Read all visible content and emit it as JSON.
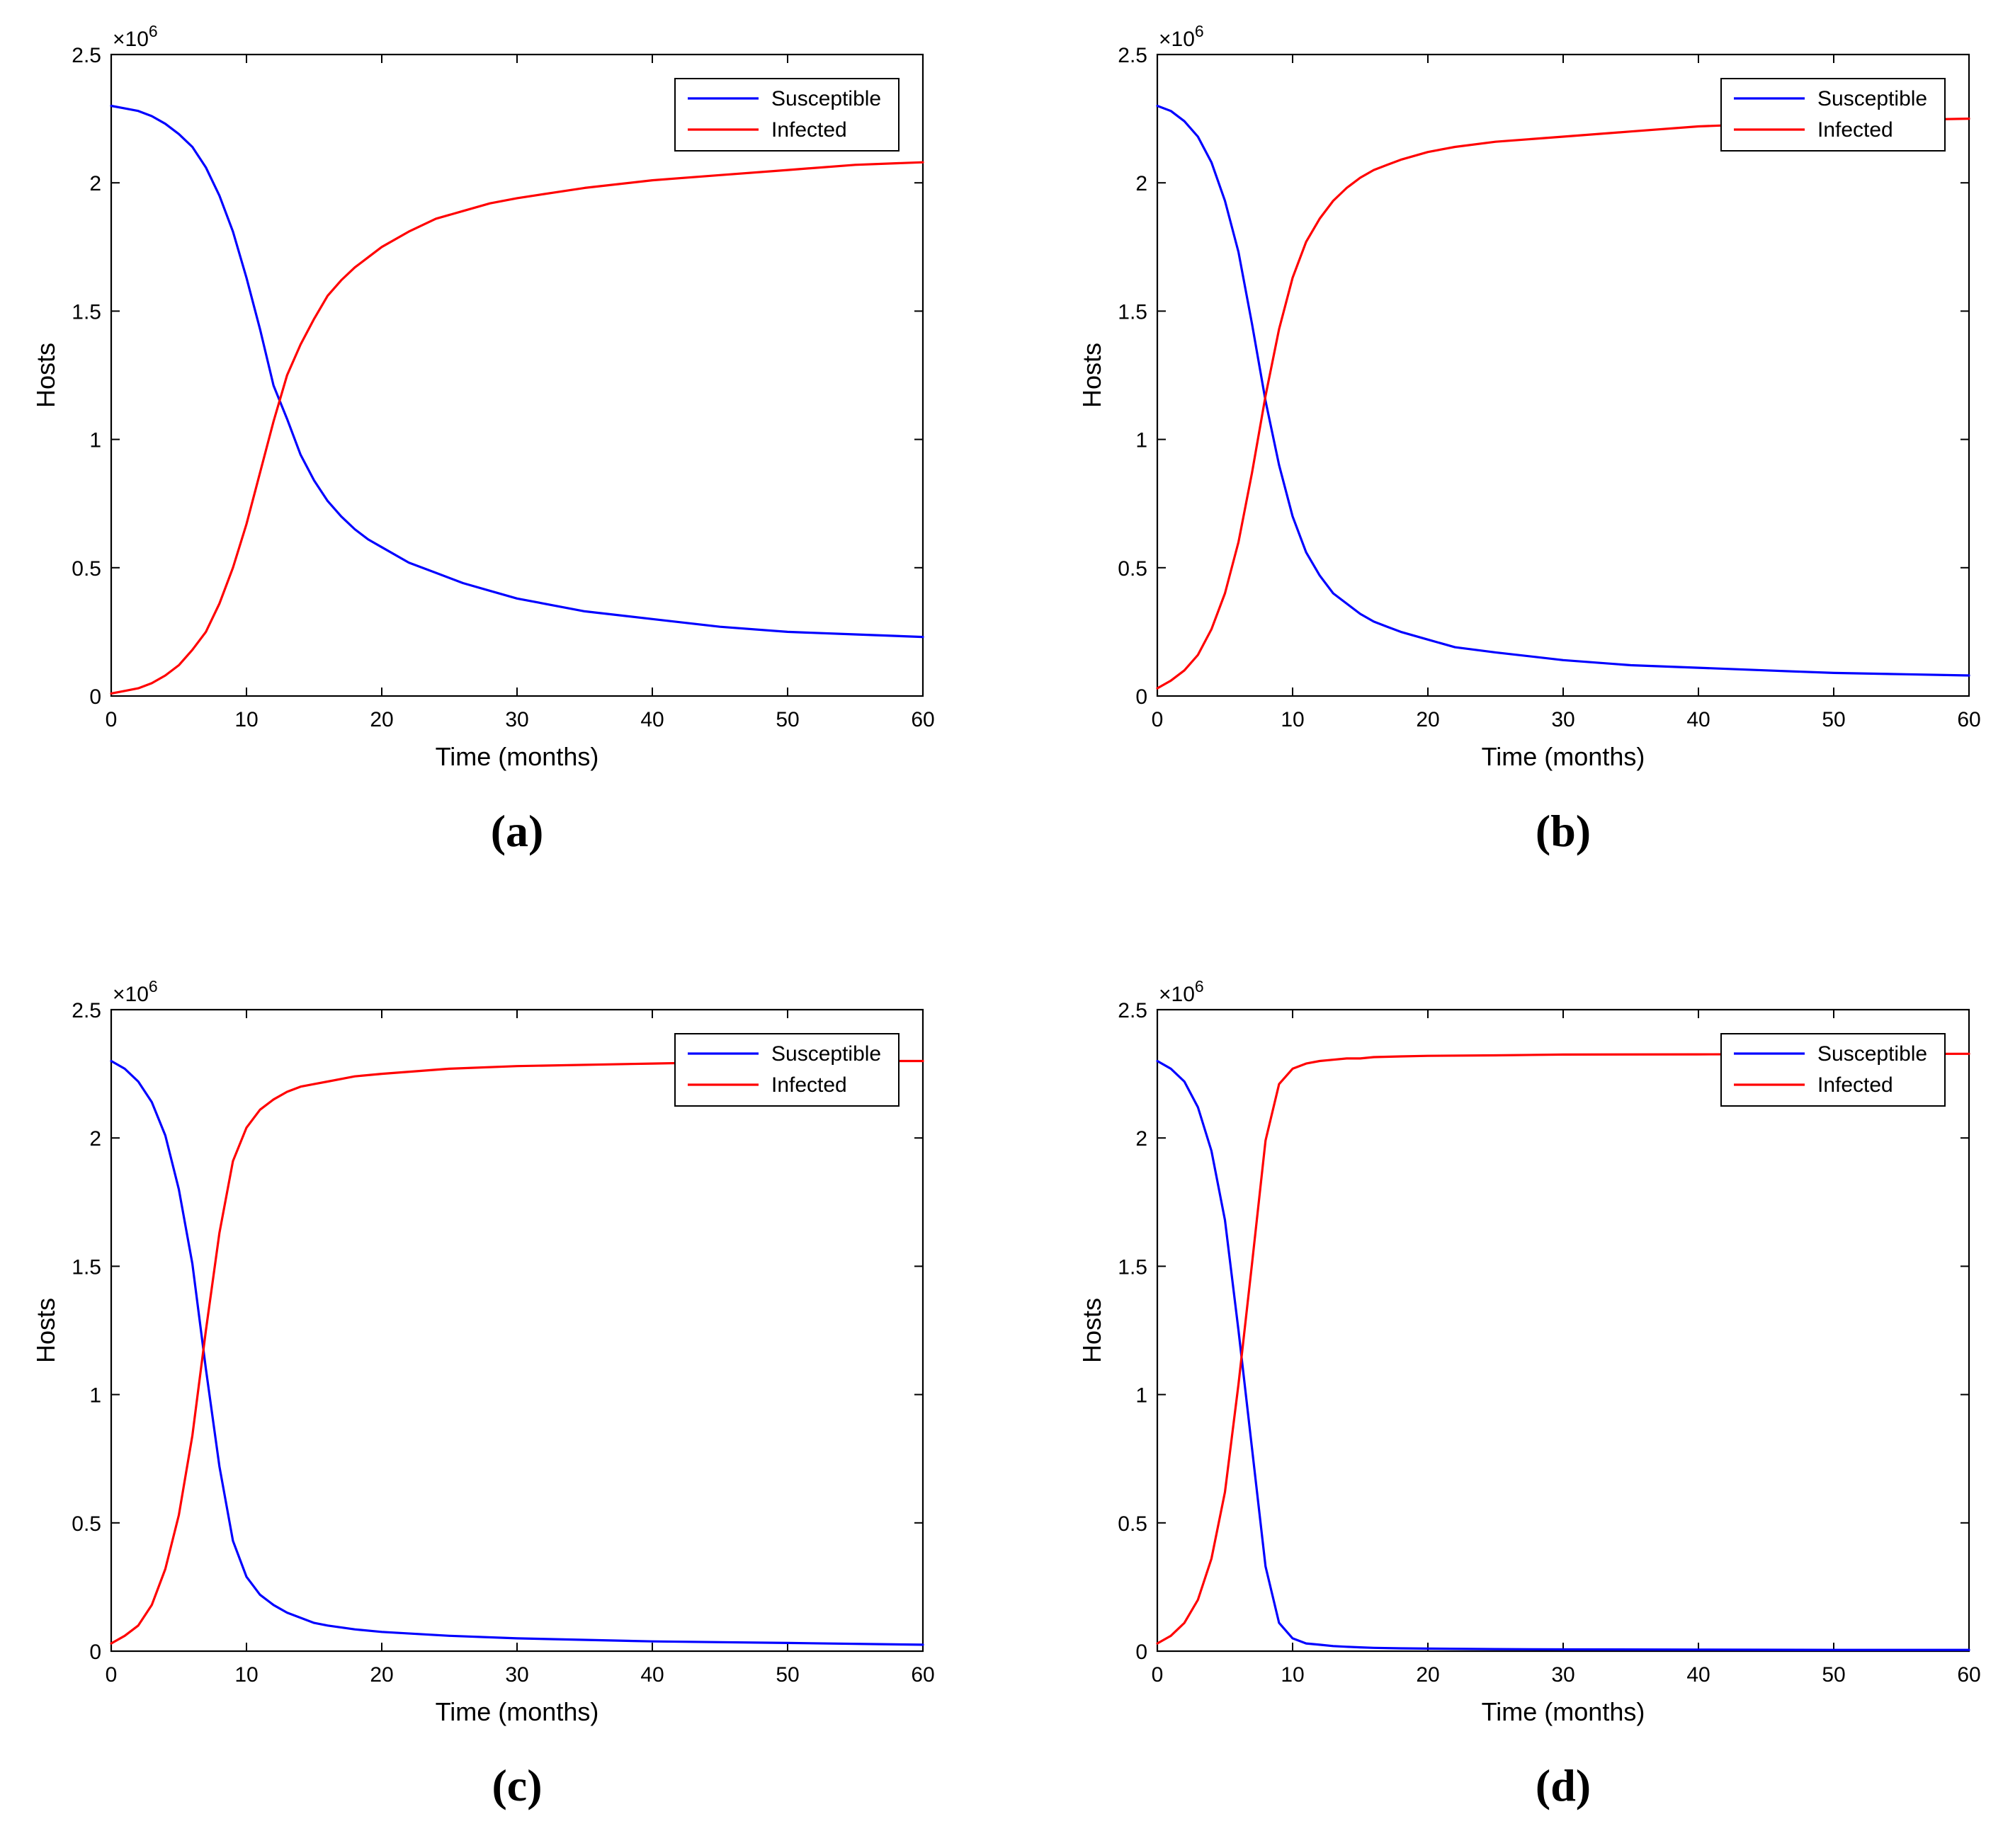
{
  "chart_data": [
    {
      "type": "line",
      "panel_label": "(a)",
      "xlabel": "Time (months)",
      "ylabel": "Hosts",
      "y_multiplier": "×10",
      "y_multiplier_exp": "6",
      "xlim": [
        0,
        60
      ],
      "ylim": [
        0,
        2.5
      ],
      "xticks": [
        "0",
        "10",
        "20",
        "30",
        "40",
        "50",
        "60"
      ],
      "yticks": [
        "0",
        "0.5",
        "1",
        "1.5",
        "2",
        "2.5"
      ],
      "grid": false,
      "legend_position": "top-right",
      "x": [
        0,
        1,
        2,
        3,
        4,
        5,
        6,
        7,
        8,
        9,
        10,
        11,
        12,
        13,
        14,
        15,
        16,
        17,
        18,
        19,
        20,
        22,
        24,
        26,
        28,
        30,
        35,
        40,
        45,
        50,
        55,
        60
      ],
      "series": [
        {
          "name": "Susceptible",
          "color": "#0000ff",
          "values": [
            2.3,
            2.29,
            2.28,
            2.26,
            2.23,
            2.19,
            2.14,
            2.06,
            1.95,
            1.81,
            1.63,
            1.43,
            1.21,
            1.08,
            0.94,
            0.84,
            0.76,
            0.7,
            0.65,
            0.61,
            0.58,
            0.52,
            0.48,
            0.44,
            0.41,
            0.38,
            0.33,
            0.3,
            0.27,
            0.25,
            0.24,
            0.23
          ]
        },
        {
          "name": "Infected",
          "color": "#ff0000",
          "values": [
            0.01,
            0.02,
            0.03,
            0.05,
            0.08,
            0.12,
            0.18,
            0.25,
            0.36,
            0.5,
            0.67,
            0.87,
            1.07,
            1.25,
            1.37,
            1.47,
            1.56,
            1.62,
            1.67,
            1.71,
            1.75,
            1.81,
            1.86,
            1.89,
            1.92,
            1.94,
            1.98,
            2.01,
            2.03,
            2.05,
            2.07,
            2.08
          ]
        }
      ]
    },
    {
      "type": "line",
      "panel_label": "(b)",
      "xlabel": "Time (months)",
      "ylabel": "Hosts",
      "y_multiplier": "×10",
      "y_multiplier_exp": "6",
      "xlim": [
        0,
        60
      ],
      "ylim": [
        0,
        2.5
      ],
      "xticks": [
        "0",
        "10",
        "20",
        "30",
        "40",
        "50",
        "60"
      ],
      "yticks": [
        "0",
        "0.5",
        "1",
        "1.5",
        "2",
        "2.5"
      ],
      "grid": false,
      "legend_position": "top-right",
      "x": [
        0,
        1,
        2,
        3,
        4,
        5,
        6,
        7,
        8,
        9,
        10,
        11,
        12,
        13,
        14,
        15,
        16,
        17,
        18,
        20,
        22,
        25,
        30,
        35,
        40,
        45,
        50,
        55,
        60
      ],
      "series": [
        {
          "name": "Susceptible",
          "color": "#0000ff",
          "values": [
            2.3,
            2.28,
            2.24,
            2.18,
            2.08,
            1.93,
            1.73,
            1.45,
            1.15,
            0.9,
            0.7,
            0.56,
            0.47,
            0.4,
            0.36,
            0.32,
            0.29,
            0.27,
            0.25,
            0.22,
            0.19,
            0.17,
            0.14,
            0.12,
            0.11,
            0.1,
            0.09,
            0.085,
            0.08
          ]
        },
        {
          "name": "Infected",
          "color": "#ff0000",
          "values": [
            0.03,
            0.06,
            0.1,
            0.16,
            0.26,
            0.4,
            0.6,
            0.87,
            1.17,
            1.43,
            1.63,
            1.77,
            1.86,
            1.93,
            1.98,
            2.02,
            2.05,
            2.07,
            2.09,
            2.12,
            2.14,
            2.16,
            2.18,
            2.2,
            2.22,
            2.23,
            2.24,
            2.245,
            2.25
          ]
        }
      ]
    },
    {
      "type": "line",
      "panel_label": "(c)",
      "xlabel": "Time (months)",
      "ylabel": "Hosts",
      "y_multiplier": "×10",
      "y_multiplier_exp": "6",
      "xlim": [
        0,
        60
      ],
      "ylim": [
        0,
        2.5
      ],
      "xticks": [
        "0",
        "10",
        "20",
        "30",
        "40",
        "50",
        "60"
      ],
      "yticks": [
        "0",
        "0.5",
        "1",
        "1.5",
        "2",
        "2.5"
      ],
      "grid": false,
      "legend_position": "top-right",
      "x": [
        0,
        1,
        2,
        3,
        4,
        5,
        6,
        7,
        8,
        9,
        10,
        11,
        12,
        13,
        14,
        15,
        16,
        18,
        20,
        25,
        30,
        40,
        50,
        60
      ],
      "series": [
        {
          "name": "Susceptible",
          "color": "#0000ff",
          "values": [
            2.3,
            2.27,
            2.22,
            2.14,
            2.01,
            1.8,
            1.51,
            1.1,
            0.72,
            0.43,
            0.29,
            0.22,
            0.18,
            0.15,
            0.13,
            0.11,
            0.1,
            0.085,
            0.075,
            0.06,
            0.05,
            0.038,
            0.032,
            0.025
          ]
        },
        {
          "name": "Infected",
          "color": "#ff0000",
          "values": [
            0.03,
            0.06,
            0.1,
            0.18,
            0.32,
            0.53,
            0.84,
            1.25,
            1.63,
            1.91,
            2.04,
            2.11,
            2.15,
            2.18,
            2.2,
            2.21,
            2.22,
            2.24,
            2.25,
            2.27,
            2.28,
            2.29,
            2.3,
            2.3
          ]
        }
      ]
    },
    {
      "type": "line",
      "panel_label": "(d)",
      "xlabel": "Time (months)",
      "ylabel": "Hosts",
      "y_multiplier": "×10",
      "y_multiplier_exp": "6",
      "xlim": [
        0,
        60
      ],
      "ylim": [
        0,
        2.5
      ],
      "xticks": [
        "0",
        "10",
        "20",
        "30",
        "40",
        "50",
        "60"
      ],
      "yticks": [
        "0",
        "0.5",
        "1",
        "1.5",
        "2",
        "2.5"
      ],
      "grid": false,
      "legend_position": "top-right",
      "x": [
        0,
        1,
        2,
        3,
        4,
        5,
        6,
        7,
        8,
        9,
        10,
        11,
        12,
        13,
        14,
        15,
        16,
        18,
        20,
        25,
        30,
        40,
        50,
        60
      ],
      "series": [
        {
          "name": "Susceptible",
          "color": "#0000ff",
          "values": [
            2.3,
            2.27,
            2.22,
            2.12,
            1.95,
            1.68,
            1.25,
            0.79,
            0.33,
            0.11,
            0.05,
            0.03,
            0.025,
            0.02,
            0.017,
            0.015,
            0.013,
            0.011,
            0.01,
            0.008,
            0.007,
            0.006,
            0.005,
            0.005
          ]
        },
        {
          "name": "Infected",
          "color": "#ff0000",
          "values": [
            0.03,
            0.06,
            0.11,
            0.2,
            0.36,
            0.62,
            1.04,
            1.51,
            1.99,
            2.21,
            2.27,
            2.29,
            2.3,
            2.305,
            2.31,
            2.31,
            2.315,
            2.318,
            2.32,
            2.322,
            2.325,
            2.326,
            2.327,
            2.328
          ]
        }
      ]
    }
  ]
}
